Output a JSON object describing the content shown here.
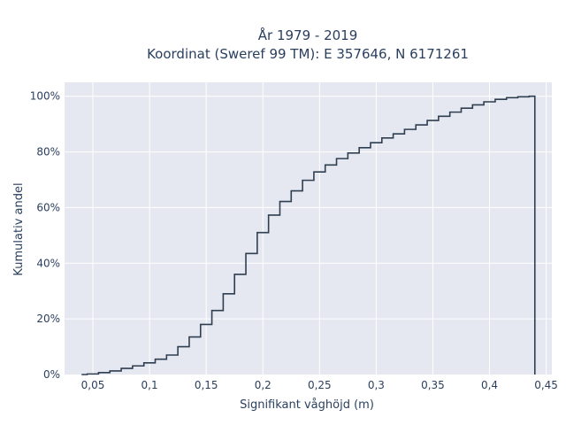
{
  "chart_data": {
    "type": "line",
    "line_shape": "step",
    "title_lines": [
      "År 1979 - 2019",
      "Koordinat (Sweref 99 TM): E 357646, N 6171261"
    ],
    "xlabel": "Signifikant våghöjd (m)",
    "ylabel": "Kumulativ andel",
    "xlim": [
      0.025,
      0.455
    ],
    "ylim": [
      0,
      1.05
    ],
    "x_ticks": [
      0.05,
      0.1,
      0.15,
      0.2,
      0.25,
      0.3,
      0.35,
      0.4,
      0.45
    ],
    "x_tick_labels": [
      "0,05",
      "0,1",
      "0,15",
      "0,2",
      "0,25",
      "0,3",
      "0,35",
      "0,4",
      "0,45"
    ],
    "y_ticks": [
      0,
      0.2,
      0.4,
      0.6,
      0.8,
      1.0
    ],
    "y_tick_labels": [
      "0%",
      "20%",
      "40%",
      "60%",
      "80%",
      "100%"
    ],
    "grid": true,
    "colors": {
      "line": "#2f3e50",
      "plot_bg": "#e5e8f0",
      "grid": "#ffffff"
    },
    "series": [
      {
        "x": [
          0.04,
          0.045,
          0.055,
          0.065,
          0.075,
          0.085,
          0.095,
          0.105,
          0.115,
          0.125,
          0.135,
          0.145,
          0.155,
          0.165,
          0.175,
          0.185,
          0.195,
          0.205,
          0.215,
          0.225,
          0.235,
          0.245,
          0.255,
          0.265,
          0.275,
          0.285,
          0.295,
          0.305,
          0.315,
          0.325,
          0.335,
          0.345,
          0.355,
          0.365,
          0.375,
          0.385,
          0.395,
          0.405,
          0.415,
          0.425,
          0.435,
          0.44,
          0.44
        ],
        "y": [
          0.0,
          0.002,
          0.007,
          0.013,
          0.022,
          0.031,
          0.042,
          0.055,
          0.07,
          0.1,
          0.135,
          0.18,
          0.23,
          0.29,
          0.36,
          0.435,
          0.51,
          0.573,
          0.622,
          0.66,
          0.698,
          0.728,
          0.753,
          0.776,
          0.796,
          0.815,
          0.833,
          0.85,
          0.865,
          0.881,
          0.897,
          0.913,
          0.928,
          0.943,
          0.957,
          0.969,
          0.98,
          0.989,
          0.995,
          0.998,
          1.0,
          1.0,
          0.0
        ]
      }
    ]
  }
}
